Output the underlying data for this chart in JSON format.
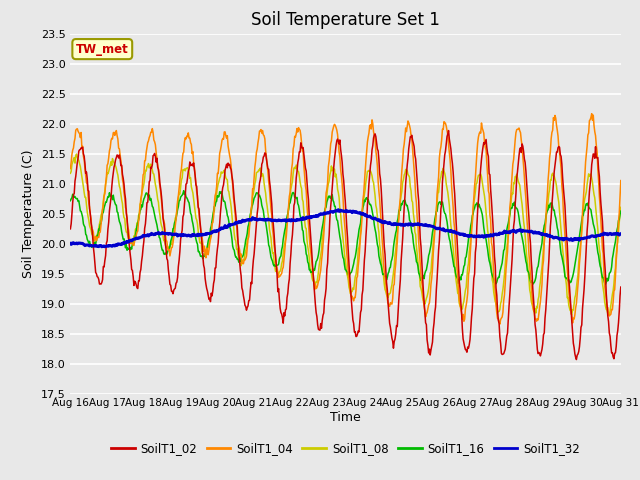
{
  "title": "Soil Temperature Set 1",
  "xlabel": "Time",
  "ylabel": "Soil Temperature (C)",
  "ylim": [
    17.5,
    23.5
  ],
  "yticks": [
    17.5,
    18.0,
    18.5,
    19.0,
    19.5,
    20.0,
    20.5,
    21.0,
    21.5,
    22.0,
    22.5,
    23.0,
    23.5
  ],
  "xtick_labels": [
    "Aug 16",
    "Aug 17",
    "Aug 18",
    "Aug 19",
    "Aug 20",
    "Aug 21",
    "Aug 22",
    "Aug 23",
    "Aug 24",
    "Aug 25",
    "Aug 26",
    "Aug 27",
    "Aug 28",
    "Aug 29",
    "Aug 30",
    "Aug 31"
  ],
  "colors": {
    "SoilT1_02": "#cc0000",
    "SoilT1_04": "#ff8800",
    "SoilT1_08": "#cccc00",
    "SoilT1_16": "#00bb00",
    "SoilT1_32": "#0000cc"
  },
  "bg_color": "#e8e8e8",
  "annotation_text": "TW_met",
  "annotation_bg": "#ffffcc",
  "annotation_border": "#999900",
  "legend_labels": [
    "SoilT1_02",
    "SoilT1_04",
    "SoilT1_08",
    "SoilT1_16",
    "SoilT1_32"
  ]
}
